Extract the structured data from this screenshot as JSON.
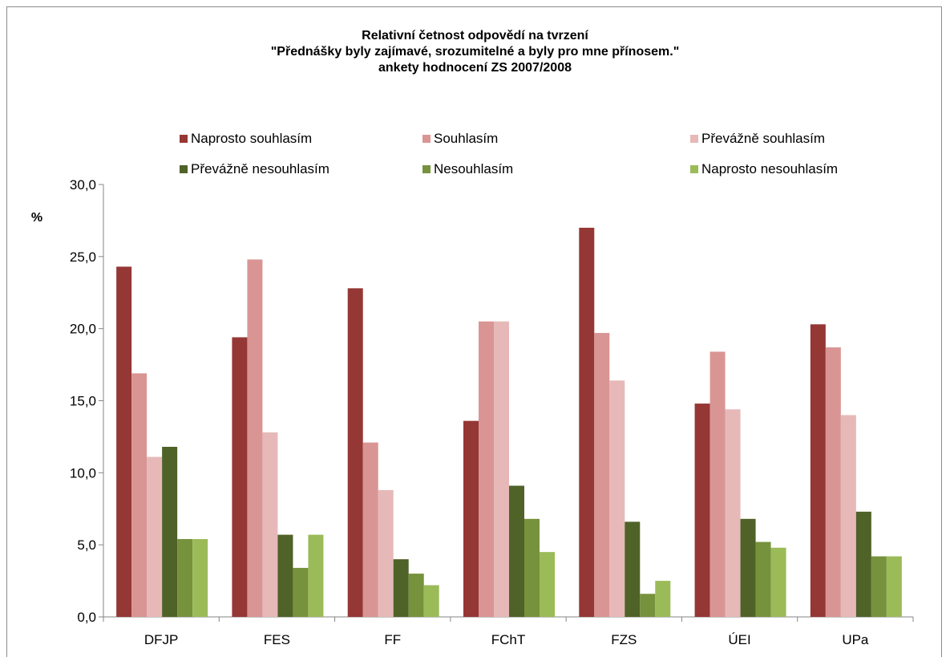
{
  "chart_data": {
    "type": "bar",
    "title": [
      "Relativní četnost odpovědí na tvrzení",
      "\"Přednášky byly zajímavé, srozumitelné a byly pro mne přínosem.\"",
      "ankety hodnocení ZS 2007/2008"
    ],
    "ylabel": "%",
    "xlabel": "",
    "ylim": [
      0,
      30
    ],
    "yticks": [
      "0,0",
      "5,0",
      "10,0",
      "15,0",
      "20,0",
      "25,0",
      "30,0"
    ],
    "grid": false,
    "legend_position": "top",
    "categories": [
      "DFJP",
      "FES",
      "FF",
      "FChT",
      "FZS",
      "ÚEI",
      "UPa"
    ],
    "series": [
      {
        "name": "Naprosto souhlasím",
        "color": "#953735",
        "values": [
          24.3,
          19.4,
          22.8,
          13.6,
          27.0,
          14.8,
          20.3
        ]
      },
      {
        "name": "Souhlasím",
        "color": "#d99594",
        "values": [
          16.9,
          24.8,
          12.1,
          20.5,
          19.7,
          18.4,
          18.7
        ]
      },
      {
        "name": "Převážně souhlasím",
        "color": "#e6b9b8",
        "values": [
          11.1,
          12.8,
          8.8,
          20.5,
          16.4,
          14.4,
          14.0
        ]
      },
      {
        "name": "Převážně nesouhlasím",
        "color": "#4f6228",
        "values": [
          11.8,
          5.7,
          4.0,
          9.1,
          6.6,
          6.8,
          7.3
        ]
      },
      {
        "name": "Nesouhlasím",
        "color": "#76923c",
        "values": [
          5.4,
          3.4,
          3.0,
          6.8,
          1.6,
          5.2,
          4.2
        ]
      },
      {
        "name": "Naprosto nesouhlasím",
        "color": "#9bbb59",
        "values": [
          5.4,
          5.7,
          2.2,
          4.5,
          2.5,
          4.8,
          4.2
        ]
      }
    ]
  }
}
